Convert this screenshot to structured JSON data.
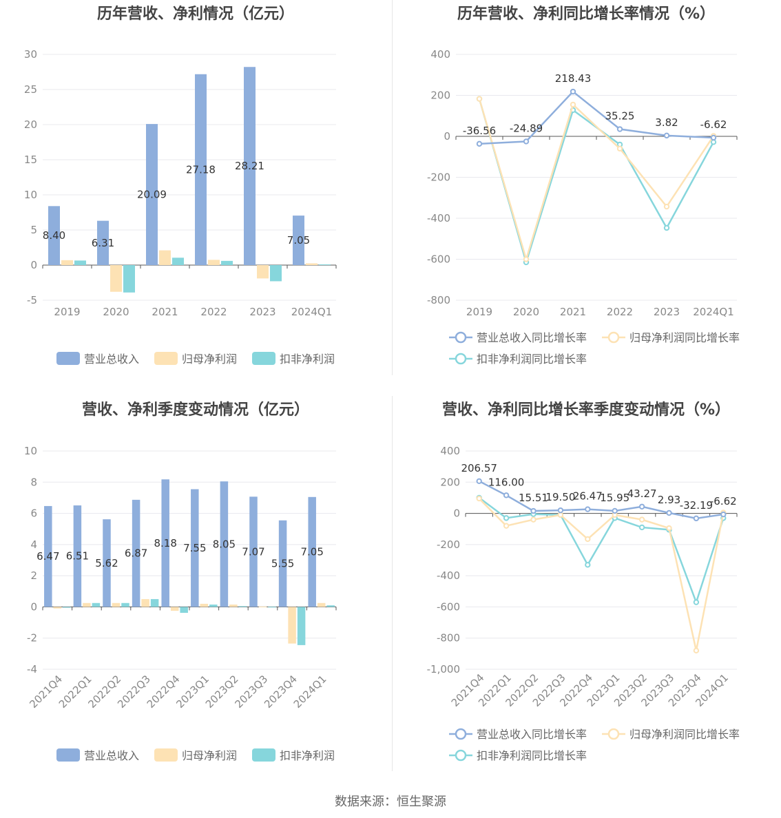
{
  "source": "数据来源：恒生聚源",
  "chart_data": [
    {
      "id": "c1",
      "type": "bar",
      "title": "历年营收、净利情况（亿元）",
      "categories": [
        "2019",
        "2020",
        "2021",
        "2022",
        "2023",
        "2024Q1"
      ],
      "series": [
        {
          "name": "营业总收入",
          "color": "#8eaedc",
          "values": [
            8.4,
            6.31,
            20.09,
            27.18,
            28.21,
            7.05
          ],
          "labels": [
            "8.40",
            "6.31",
            "20.09",
            "27.18",
            "28.21",
            "7.05"
          ]
        },
        {
          "name": "归母净利润",
          "color": "#fde2b4",
          "values": [
            0.7,
            -3.8,
            2.1,
            0.75,
            -1.9,
            0.25
          ]
        },
        {
          "name": "扣非净利润",
          "color": "#86d6dc",
          "values": [
            0.65,
            -3.9,
            1.05,
            0.6,
            -2.3,
            0.1
          ]
        }
      ],
      "ylim": [
        -5,
        30
      ],
      "yticks": [
        30,
        25,
        20,
        15,
        10,
        5,
        0,
        -5
      ],
      "legend": "bottom",
      "grid": true
    },
    {
      "id": "c2",
      "type": "line",
      "title": "历年营收、净利同比增长率情况（%）",
      "categories": [
        "2019",
        "2020",
        "2021",
        "2022",
        "2023",
        "2024Q1"
      ],
      "series": [
        {
          "name": "营业总收入同比增长率",
          "color": "#8eaedc",
          "values": [
            -36.56,
            -24.89,
            218.43,
            35.25,
            3.82,
            -6.62
          ],
          "labels": [
            "-36.56",
            "-24.89",
            "218.43",
            "35.25",
            "3.82",
            "-6.62"
          ]
        },
        {
          "name": "归母净利润同比增长率",
          "color": "#fde2b4",
          "values": [
            183,
            -600,
            155,
            -60,
            -343,
            2
          ]
        },
        {
          "name": "扣非净利润同比增长率",
          "color": "#86d6dc",
          "values": [
            183,
            -615,
            128,
            -40,
            -447,
            -28
          ]
        }
      ],
      "ylim": [
        -800,
        400
      ],
      "yticks": [
        400,
        200,
        0,
        -200,
        -400,
        -600,
        -800
      ],
      "legend": "bottom",
      "grid": true
    },
    {
      "id": "c3",
      "type": "bar",
      "title": "营收、净利季度变动情况（亿元）",
      "categories": [
        "2021Q4",
        "2022Q1",
        "2022Q2",
        "2022Q3",
        "2022Q4",
        "2023Q1",
        "2023Q2",
        "2023Q3",
        "2023Q4",
        "2024Q1"
      ],
      "series": [
        {
          "name": "营业总收入",
          "color": "#8eaedc",
          "values": [
            6.47,
            6.51,
            5.62,
            6.87,
            8.18,
            7.55,
            8.05,
            7.07,
            5.55,
            7.05
          ],
          "labels": [
            "6.47",
            "6.51",
            "5.62",
            "6.87",
            "8.18",
            "7.55",
            "8.05",
            "7.07",
            "5.55",
            "7.05"
          ]
        },
        {
          "name": "归母净利润",
          "color": "#fde2b4",
          "values": [
            -0.1,
            0.25,
            0.25,
            0.5,
            -0.25,
            0.2,
            0.15,
            0.02,
            -2.35,
            0.25
          ]
        },
        {
          "name": "扣非净利润",
          "color": "#86d6dc",
          "values": [
            -0.05,
            0.25,
            0.25,
            0.5,
            -0.38,
            0.15,
            0.05,
            0.01,
            -2.45,
            0.1
          ]
        }
      ],
      "ylim": [
        -4,
        10
      ],
      "yticks": [
        10,
        8,
        6,
        4,
        2,
        0,
        -2,
        -4
      ],
      "legend": "bottom",
      "grid": true,
      "rotate_x_labels": true
    },
    {
      "id": "c4",
      "type": "line",
      "title": "营收、净利同比增长率季度变动情况（%）",
      "categories": [
        "2021Q4",
        "2022Q1",
        "2022Q2",
        "2022Q3",
        "2022Q4",
        "2023Q1",
        "2023Q2",
        "2023Q3",
        "2023Q4",
        "2024Q1"
      ],
      "series": [
        {
          "name": "营业总收入同比增长率",
          "color": "#8eaedc",
          "values": [
            206.57,
            116.0,
            15.51,
            19.5,
            26.47,
            15.95,
            43.27,
            2.93,
            -32.19,
            -6.62
          ],
          "labels": [
            "206.57",
            "116.00",
            "15.51",
            "19.50",
            "26.47",
            "15.95",
            "43.27",
            "2.93",
            "-32.19",
            "-6.62"
          ]
        },
        {
          "name": "归母净利润同比增长率",
          "color": "#fde2b4",
          "values": [
            95,
            -80,
            -40,
            -10,
            -165,
            -10,
            -40,
            -95,
            -880,
            5
          ]
        },
        {
          "name": "扣非净利润同比增长率",
          "color": "#86d6dc",
          "values": [
            100,
            -30,
            -5,
            -10,
            -330,
            -30,
            -90,
            -105,
            -570,
            -30
          ]
        }
      ],
      "ylim": [
        -1000,
        400
      ],
      "yticks": [
        "400",
        "200",
        "0",
        "-200",
        "-400",
        "-600",
        "-800",
        "-1,000"
      ],
      "legend": "bottom",
      "grid": true,
      "rotate_x_labels": true
    }
  ]
}
